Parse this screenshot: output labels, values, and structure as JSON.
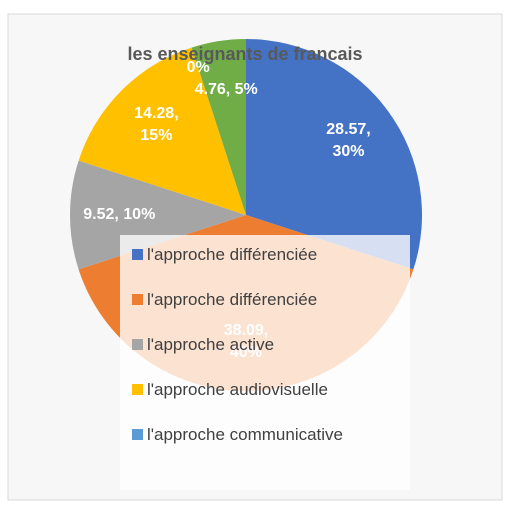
{
  "chart_data": {
    "type": "pie",
    "title": "les enseignants de francais",
    "categories": [
      "l'approche différenciée",
      "l'approche différenciée",
      "l'approche active",
      "l'approche audiovisuelle",
      "l'approche communicative",
      null
    ],
    "values": [
      28.57,
      38.09,
      9.52,
      14.28,
      0,
      4.76
    ],
    "value_labels": [
      "28.57, 30%",
      "38.09, 40%",
      "9.52, 10%",
      "14.28, 15%",
      "0%",
      "4.76, 5%"
    ],
    "colors": [
      "#4472c4",
      "#ed7d31",
      "#a5a5a5",
      "#ffc000",
      "#5b9bd5",
      "#70ad47"
    ],
    "legend": "center"
  }
}
